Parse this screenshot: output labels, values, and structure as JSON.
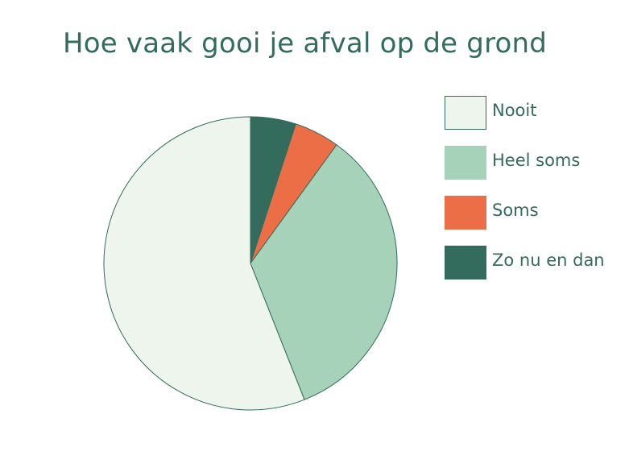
{
  "chart_data": {
    "type": "pie",
    "title": "Hoe vaak gooi je afval op de grond",
    "categories": [
      "Nooit",
      "Heel soms",
      "Soms",
      "Zo nu en dan"
    ],
    "values": [
      56,
      34,
      5,
      5
    ],
    "colors": [
      "#eef5ec",
      "#a5d2b8",
      "#eb6e46",
      "#336b5d"
    ],
    "outline_color": "#336b5d",
    "start_angle_deg": 0,
    "direction": "counterclockwise-from-top",
    "legend": "right"
  }
}
